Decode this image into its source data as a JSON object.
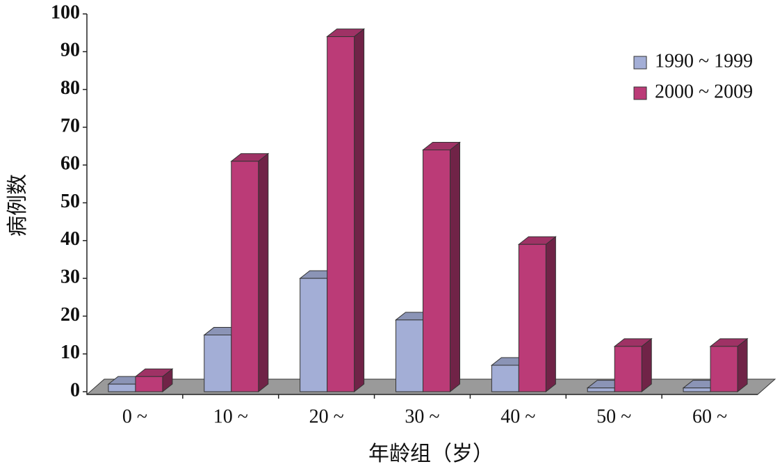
{
  "chart_data": {
    "type": "bar3d",
    "x_label": "年龄组（岁）",
    "y_label": "病例数",
    "categories": [
      "0 ~",
      "10 ~",
      "20 ~",
      "30 ~",
      "40 ~",
      "50 ~",
      "60 ~"
    ],
    "series": [
      {
        "name": "1990 ~ 1999",
        "color": "#a3aed6",
        "values": [
          2,
          15,
          30,
          19,
          7,
          1,
          1
        ]
      },
      {
        "name": "2000 ~ 2009",
        "color": "#bb3b77",
        "values": [
          4,
          61,
          94,
          64,
          39,
          12,
          12
        ]
      }
    ],
    "ylim": [
      0,
      100
    ],
    "yticks": [
      0,
      10,
      20,
      30,
      40,
      50,
      60,
      70,
      80,
      90,
      100
    ],
    "legend": "top-right"
  }
}
